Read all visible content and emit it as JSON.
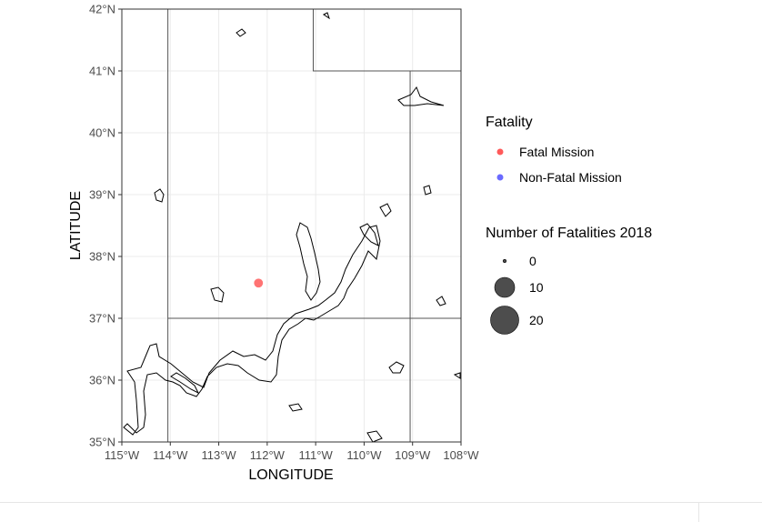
{
  "chart_data": {
    "type": "map",
    "xlabel": "LONGITUDE",
    "ylabel": "LATITUDE",
    "xlim": [
      -115,
      -108
    ],
    "ylim": [
      35,
      42
    ],
    "x_ticks": [
      -115,
      -114,
      -113,
      -112,
      -111,
      -110,
      -109,
      -108
    ],
    "x_tick_labels": [
      "115°W",
      "114°W",
      "113°W",
      "112°W",
      "111°W",
      "110°W",
      "109°W",
      "108°W"
    ],
    "y_ticks": [
      35,
      36,
      37,
      38,
      39,
      40,
      41,
      42
    ],
    "y_tick_labels": [
      "35°N",
      "36°N",
      "37°N",
      "38°N",
      "39°N",
      "40°N",
      "41°N",
      "42°N"
    ],
    "grid": true,
    "state_borders": [
      {
        "points": [
          [
            -114.05,
            35
          ],
          [
            -114.05,
            42
          ]
        ]
      },
      {
        "points": [
          [
            -114.05,
            37
          ],
          [
            -108,
            37
          ]
        ]
      },
      {
        "points": [
          [
            -109.05,
            35
          ],
          [
            -109.05,
            41
          ]
        ]
      },
      {
        "points": [
          [
            -111.05,
            42
          ],
          [
            -111.05,
            41
          ],
          [
            -108,
            41
          ]
        ]
      }
    ],
    "points": [
      {
        "lon": -112.18,
        "lat": 37.57,
        "fatality": "Fatal Mission",
        "fatalities": 1
      }
    ],
    "color_legend": {
      "title": "Fatality",
      "entries": [
        {
          "label": "Fatal Mission",
          "color": "#ff5a5a"
        },
        {
          "label": "Non-Fatal Mission",
          "color": "#6a6aff"
        }
      ]
    },
    "size_legend": {
      "title": "Number of Fatalities 2018",
      "entries": [
        {
          "label": "0",
          "value": 0
        },
        {
          "label": "10",
          "value": 10
        },
        {
          "label": "20",
          "value": 20
        }
      ]
    },
    "colors": {
      "fatal": "#ff5a5a",
      "non_fatal": "#6a6aff",
      "size_marker": "#4d4d4d",
      "border": "#555555",
      "grid": "#ebebeb",
      "river": "#000000"
    }
  }
}
